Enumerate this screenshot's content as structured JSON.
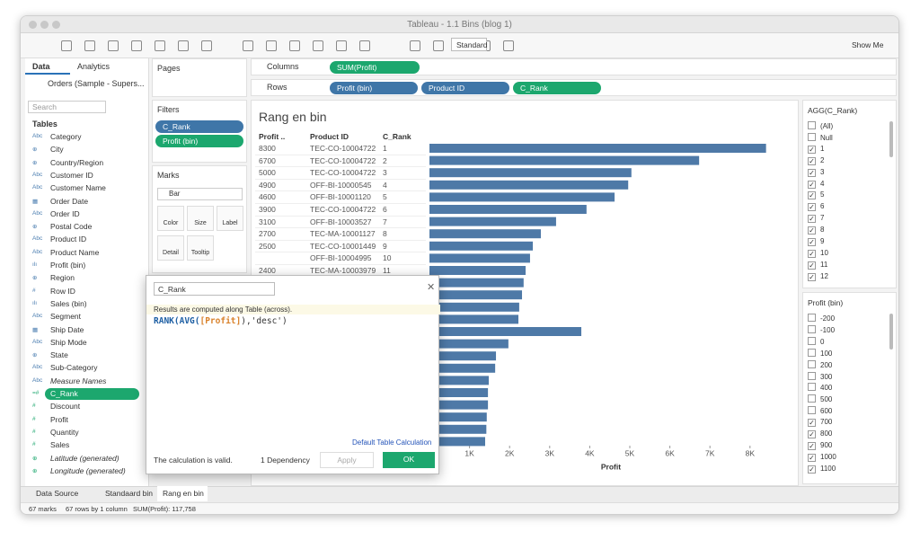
{
  "window": {
    "title": "Tableau - 1.1 Bins (blog 1)"
  },
  "toolbar": {
    "mark_type": "Standard",
    "show_me": "Show Me"
  },
  "data_pane": {
    "tabs": [
      "Data",
      "Analytics"
    ],
    "source": "Orders (Sample - Supers...",
    "search": "Search",
    "tables_header": "Tables",
    "fields": [
      "Category",
      "City",
      "Country/Region",
      "Customer ID",
      "Customer Name",
      "Order Date",
      "Order ID",
      "Postal Code",
      "Product ID",
      "Product Name",
      "Profit (bin)",
      "Region",
      "Row ID",
      "Sales (bin)",
      "Segment",
      "Ship Date",
      "Ship Mode",
      "State",
      "Sub-Category",
      "Measure Names",
      "C_Rank",
      "Discount",
      "Profit",
      "Quantity",
      "Sales",
      "Latitude (generated)",
      "Longitude (generated)"
    ],
    "icons": [
      "Abc",
      "⊕",
      "⊕",
      "Abc",
      "Abc",
      "▦",
      "Abc",
      "⊕",
      "Abc",
      "Abc",
      "ılı",
      "⊕",
      "#",
      "ılı",
      "Abc",
      "▦",
      "Abc",
      "⊕",
      "Abc",
      "Abc",
      "=#",
      "#",
      "#",
      "#",
      "#",
      "⊕",
      "⊕"
    ]
  },
  "shelves": {
    "pages": "Pages",
    "columns_label": "Columns",
    "columns": [
      "SUM(Profit)"
    ],
    "rows_label": "Rows",
    "rows": [
      "Profit (bin)",
      "Product ID",
      "C_Rank"
    ],
    "filters_label": "Filters",
    "filters": [
      "C_Rank",
      "Profit (bin)"
    ],
    "marks_label": "Marks",
    "mark_type": "Bar",
    "mark_buttons": [
      "Color",
      "Size",
      "Label",
      "Detail",
      "Tooltip"
    ]
  },
  "sheet": {
    "title": "Rang en bin",
    "headers": [
      "Profit ..",
      "Product ID",
      "C_Rank"
    ],
    "profit_bins": [
      8300,
      6700,
      5000,
      4900,
      4600,
      3900,
      3100,
      2700,
      2500,
      null,
      2400
    ],
    "product_ids": [
      "TEC-CO-10004722",
      "TEC-CO-10004722",
      "TEC-CO-10004722",
      "OFF-BI-10000545",
      "OFF-BI-10001120",
      "TEC-CO-10004722",
      "OFF-BI-10003527",
      "TEC-MA-10001127",
      "TEC-CO-10001449",
      "OFF-BI-10004995",
      "TEC-MA-10003979"
    ],
    "ranks": [
      1,
      2,
      3,
      4,
      5,
      6,
      7,
      8,
      9,
      10,
      11
    ],
    "bars": [
      8400,
      6730,
      5040,
      4960,
      4620,
      3920,
      3160,
      2780,
      2580,
      2510,
      2400,
      2350,
      2310,
      2240,
      2220,
      3790,
      1970,
      1660,
      1640,
      1480,
      1460,
      1460,
      1430,
      1420,
      1390
    ],
    "color": "#4e79a7",
    "xlim": [
      0,
      8800
    ],
    "xticks": [
      {
        "value": 1000,
        "label": "1K"
      },
      {
        "value": 2000,
        "label": "2K"
      },
      {
        "value": 3000,
        "label": "3K"
      },
      {
        "value": 4000,
        "label": "4K"
      },
      {
        "value": 5000,
        "label": "5K"
      },
      {
        "value": 6000,
        "label": "6K"
      },
      {
        "value": 7000,
        "label": "7K"
      },
      {
        "value": 8000,
        "label": "8K"
      }
    ],
    "xlabel": "Profit"
  },
  "dialog": {
    "name": "C_Rank",
    "info": "Results are computed along Table (across).",
    "formula": [
      "RANK(AVG(",
      "[Profit]",
      "),'desc')"
    ],
    "link": "Default Table Calculation",
    "status": "The calculation is valid.",
    "dependency": "1 Dependency",
    "apply": "Apply",
    "ok": "OK"
  },
  "filter_agg": {
    "title": "AGG(C_Rank)",
    "items": [
      "(All)",
      "Null",
      "1",
      "2",
      "3",
      "4",
      "5",
      "6",
      "7",
      "8",
      "9",
      "10",
      "11",
      "12"
    ],
    "checked": [
      false,
      false,
      true,
      true,
      true,
      true,
      true,
      true,
      true,
      true,
      true,
      true,
      true,
      true
    ]
  },
  "filter_bin": {
    "title": "Profit (bin)",
    "items": [
      -200,
      -100,
      0,
      100,
      200,
      300,
      400,
      500,
      600,
      700,
      800,
      900,
      1000,
      1100
    ],
    "checked": [
      false,
      false,
      false,
      false,
      false,
      false,
      false,
      false,
      false,
      true,
      true,
      true,
      true,
      true
    ]
  },
  "tabs": [
    "Data Source",
    "Standaard bin",
    "Rang en bin"
  ],
  "status": [
    "67 marks",
    "67 rows by 1 column",
    "SUM(Profit): 117,758"
  ]
}
